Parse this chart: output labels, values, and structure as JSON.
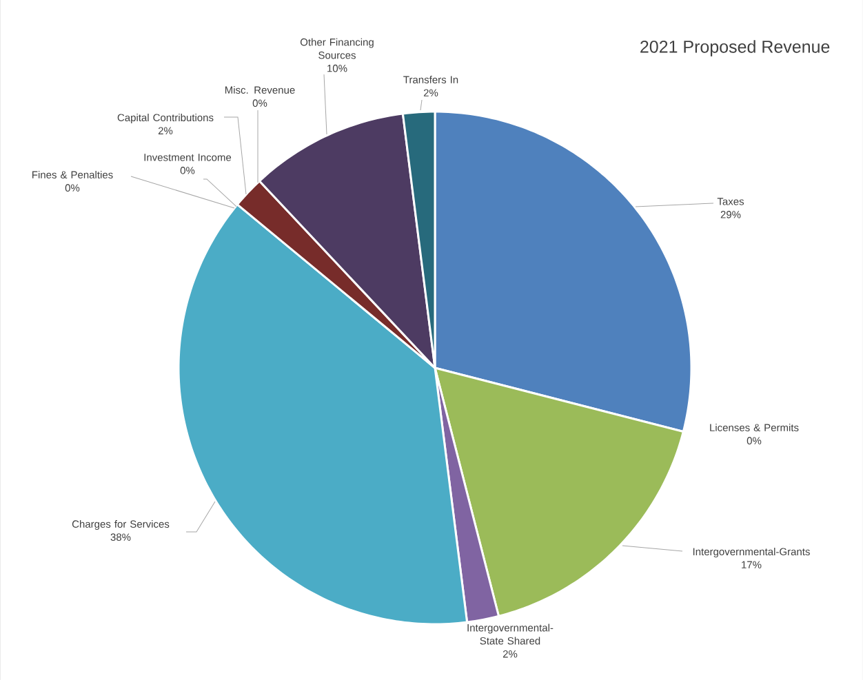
{
  "chart_data": {
    "type": "pie",
    "title": "2021 Proposed Revenue",
    "categories": [
      "Taxes",
      "Licenses & Permits",
      "Intergovernmental-Grants",
      "Intergovernmental-State Shared",
      "Charges for Services",
      "Fines & Penalties",
      "Investment Income",
      "Capital Contributions",
      "Misc. Revenue",
      "Other Financing Sources",
      "Transfers In"
    ],
    "values": [
      29,
      0,
      17,
      2,
      38,
      0,
      0,
      2,
      0,
      10,
      2
    ],
    "value_labels": [
      "29%",
      "0%",
      "17%",
      "2%",
      "38%",
      "0%",
      "0%",
      "2%",
      "0%",
      "10%",
      "2%"
    ],
    "colors": [
      "#4f81bd",
      "#c0504d",
      "#9bbb59",
      "#8064a2",
      "#4bacc6",
      "#f79646",
      "#2c4d75",
      "#772c2a",
      "#5f7530",
      "#4d3b62",
      "#276a7c"
    ]
  }
}
